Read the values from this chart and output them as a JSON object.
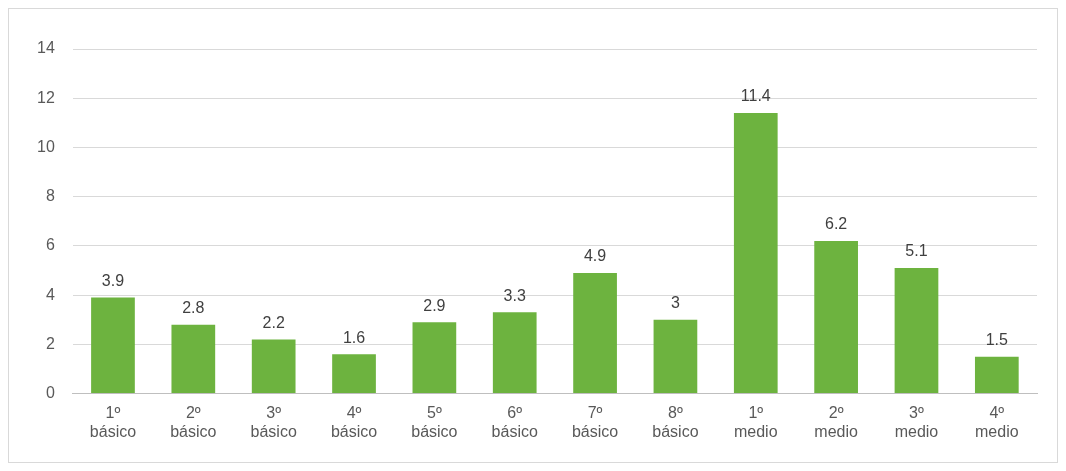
{
  "chart_data": {
    "type": "bar",
    "categories": [
      "1º básico",
      "2º básico",
      "3º básico",
      "4º básico",
      "5º básico",
      "6º básico",
      "7º básico",
      "8º básico",
      "1º medio",
      "2º medio",
      "3º medio",
      "4º medio"
    ],
    "values": [
      3.9,
      2.8,
      2.2,
      1.6,
      2.9,
      3.3,
      4.9,
      3,
      11.4,
      6.2,
      5.1,
      1.5
    ],
    "color": "#6db33f",
    "ylim": [
      0,
      14
    ],
    "yticks": [
      0,
      2,
      4,
      6,
      8,
      10,
      12,
      14
    ],
    "grid": "y",
    "data_labels": true,
    "legend": false
  }
}
